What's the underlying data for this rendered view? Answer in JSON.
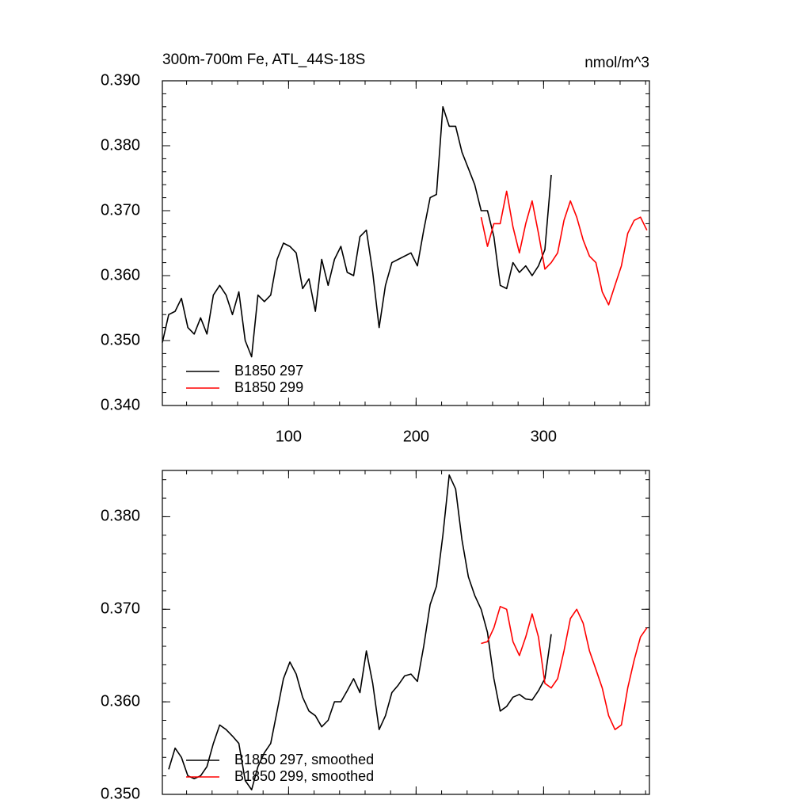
{
  "chart_data": [
    {
      "type": "line",
      "title": "300m-700m Fe, ATL_44S-18S",
      "units": "nmol/m^3",
      "x": [
        1,
        6,
        11,
        16,
        21,
        26,
        31,
        36,
        41,
        46,
        51,
        56,
        61,
        66,
        71,
        76,
        81,
        86,
        91,
        96,
        101,
        106,
        111,
        116,
        121,
        126,
        131,
        136,
        141,
        146,
        151,
        156,
        161,
        166,
        171,
        176,
        181,
        186,
        191,
        196,
        201,
        206,
        211,
        216,
        221,
        226,
        231,
        236,
        241,
        246,
        251,
        256,
        261,
        266,
        271,
        276,
        281,
        286,
        291,
        296,
        301,
        306,
        311,
        316,
        321,
        326,
        331,
        336,
        341,
        346,
        351,
        356,
        361,
        366,
        371,
        376,
        381
      ],
      "series": [
        {
          "name": "B1850 297",
          "color": "#000000",
          "values": [
            0.3497,
            0.354,
            0.3545,
            0.3565,
            0.352,
            0.351,
            0.3535,
            0.351,
            0.357,
            0.3585,
            0.357,
            0.354,
            0.3575,
            0.35,
            0.3475,
            0.357,
            0.356,
            0.357,
            0.3625,
            0.365,
            0.3645,
            0.3635,
            0.358,
            0.3595,
            0.3545,
            0.3625,
            0.3585,
            0.3625,
            0.3645,
            0.3605,
            0.36,
            0.366,
            0.367,
            0.3605,
            0.352,
            0.3585,
            0.362,
            0.3625,
            0.363,
            0.3635,
            0.3615,
            0.367,
            0.372,
            0.3725,
            0.386,
            0.383,
            0.383,
            0.379,
            0.3765,
            0.374,
            0.37,
            0.37,
            0.366,
            0.3585,
            0.358,
            0.362,
            0.3605,
            0.3615,
            0.36,
            0.3615,
            0.364,
            0.3755,
            null,
            null,
            null,
            null,
            null,
            null,
            null,
            null,
            null,
            null,
            null,
            null,
            null,
            null,
            null
          ]
        },
        {
          "name": "B1850 299",
          "color": "#ff0000",
          "values": [
            null,
            null,
            null,
            null,
            null,
            null,
            null,
            null,
            null,
            null,
            null,
            null,
            null,
            null,
            null,
            null,
            null,
            null,
            null,
            null,
            null,
            null,
            null,
            null,
            null,
            null,
            null,
            null,
            null,
            null,
            null,
            null,
            null,
            null,
            null,
            null,
            null,
            null,
            null,
            null,
            null,
            null,
            null,
            null,
            null,
            null,
            null,
            null,
            null,
            null,
            0.369,
            0.3645,
            0.368,
            0.368,
            0.373,
            0.3675,
            0.3635,
            0.368,
            0.3715,
            0.3665,
            0.361,
            0.362,
            0.3635,
            0.3685,
            0.3715,
            0.369,
            0.3655,
            0.363,
            0.362,
            0.3575,
            0.3555,
            0.3585,
            0.3615,
            0.3665,
            0.3685,
            0.369,
            0.367
          ]
        }
      ],
      "xlim": [
        1,
        383
      ],
      "xticks": [
        100,
        200,
        300
      ],
      "xtick_labels": true,
      "ylim": [
        0.34,
        0.39
      ],
      "yticks": [
        {
          "value": 0.34,
          "label": "0.340"
        },
        {
          "value": 0.35,
          "label": "0.350"
        },
        {
          "value": 0.36,
          "label": "0.360"
        },
        {
          "value": 0.37,
          "label": "0.370"
        },
        {
          "value": 0.38,
          "label": "0.380"
        },
        {
          "value": 0.39,
          "label": "0.390"
        }
      ],
      "legend": "lower left"
    },
    {
      "type": "line",
      "x": [
        1,
        6,
        11,
        16,
        21,
        26,
        31,
        36,
        41,
        46,
        51,
        56,
        61,
        66,
        71,
        76,
        81,
        86,
        91,
        96,
        101,
        106,
        111,
        116,
        121,
        126,
        131,
        136,
        141,
        146,
        151,
        156,
        161,
        166,
        171,
        176,
        181,
        186,
        191,
        196,
        201,
        206,
        211,
        216,
        221,
        226,
        231,
        236,
        241,
        246,
        251,
        256,
        261,
        266,
        271,
        276,
        281,
        286,
        291,
        296,
        301,
        306,
        311,
        316,
        321,
        326,
        331,
        336,
        341,
        346,
        351,
        356,
        361,
        366,
        371,
        376,
        381
      ],
      "series": [
        {
          "name": "B1850 297, smoothed",
          "color": "#000000",
          "values": [
            null,
            0.3527,
            0.355,
            0.354,
            0.352,
            0.3517,
            0.352,
            0.353,
            0.3555,
            0.3575,
            0.357,
            0.3563,
            0.3555,
            0.3515,
            0.3505,
            0.353,
            0.3545,
            0.3555,
            0.359,
            0.3625,
            0.3643,
            0.363,
            0.3605,
            0.359,
            0.3585,
            0.3573,
            0.358,
            0.36,
            0.36,
            0.3612,
            0.3625,
            0.361,
            0.3655,
            0.362,
            0.357,
            0.3585,
            0.361,
            0.3618,
            0.3628,
            0.363,
            0.3622,
            0.366,
            0.3705,
            0.3725,
            0.378,
            0.3845,
            0.383,
            0.3775,
            0.3735,
            0.3715,
            0.37,
            0.3675,
            0.3625,
            0.359,
            0.3595,
            0.3605,
            0.3608,
            0.3603,
            0.3602,
            0.3612,
            0.3625,
            0.3673,
            null,
            null,
            null,
            null,
            null,
            null,
            null,
            null,
            null,
            null,
            null,
            null,
            null,
            null,
            null
          ]
        },
        {
          "name": "B1850 299, smoothed",
          "color": "#ff0000",
          "values": [
            null,
            null,
            null,
            null,
            null,
            null,
            null,
            null,
            null,
            null,
            null,
            null,
            null,
            null,
            null,
            null,
            null,
            null,
            null,
            null,
            null,
            null,
            null,
            null,
            null,
            null,
            null,
            null,
            null,
            null,
            null,
            null,
            null,
            null,
            null,
            null,
            null,
            null,
            null,
            null,
            null,
            null,
            null,
            null,
            null,
            null,
            null,
            null,
            null,
            null,
            0.3663,
            0.3665,
            0.368,
            0.3703,
            0.37,
            0.3665,
            0.365,
            0.367,
            0.3695,
            0.367,
            0.362,
            0.3615,
            0.3625,
            0.3655,
            0.369,
            0.37,
            0.3685,
            0.3655,
            0.3635,
            0.3615,
            0.3585,
            0.357,
            0.3575,
            0.3615,
            0.3645,
            0.367,
            0.368
          ]
        }
      ],
      "xlim": [
        1,
        383
      ],
      "xticks": [
        100,
        200,
        300
      ],
      "xtick_labels": false,
      "ylim": [
        0.35,
        0.385
      ],
      "yticks": [
        {
          "value": 0.35,
          "label": "0.350"
        },
        {
          "value": 0.36,
          "label": "0.360"
        },
        {
          "value": 0.37,
          "label": "0.370"
        },
        {
          "value": 0.38,
          "label": "0.380"
        }
      ],
      "legend": "lower left"
    }
  ]
}
